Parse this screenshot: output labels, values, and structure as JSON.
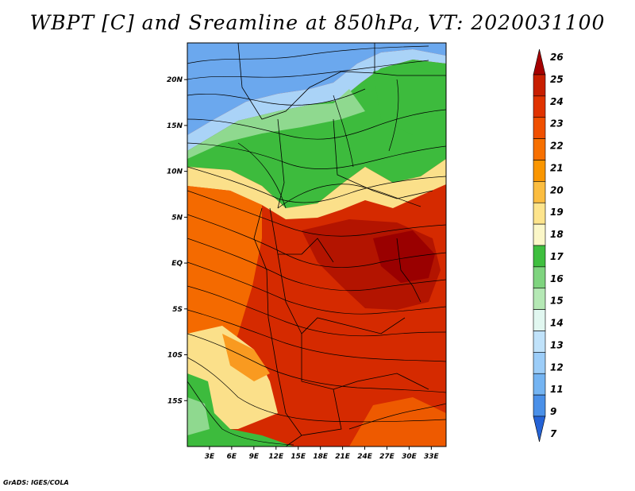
{
  "title": "WBPT [C] and Sreamline at 850hPa, VT: 2020031100",
  "credit": "GrADS: IGES/COLA",
  "map": {
    "lon_range": [
      0,
      35
    ],
    "lat_range": [
      -20,
      24
    ],
    "lon_ticks": [
      "3E",
      "6E",
      "9E",
      "12E",
      "15E",
      "18E",
      "21E",
      "24E",
      "27E",
      "30E",
      "33E"
    ],
    "lat_ticks": [
      "20N",
      "15N",
      "10N",
      "5N",
      "EQ",
      "5S",
      "10S",
      "15S"
    ]
  },
  "colorbar": {
    "levels": [
      "26",
      "25",
      "24",
      "23",
      "22",
      "21",
      "20",
      "19",
      "18",
      "17",
      "16",
      "15",
      "14",
      "13",
      "12",
      "11",
      "9",
      "7"
    ],
    "colors": [
      "#a50000",
      "#c81e00",
      "#e03300",
      "#f05000",
      "#f77000",
      "#fa9600",
      "#fbbd40",
      "#fde48c",
      "#fbf7c8",
      "#3fbf3f",
      "#7fd47f",
      "#b5e8b5",
      "#e1f7f0",
      "#c0e2fa",
      "#9ccdf8",
      "#74b4f2",
      "#4a90e8",
      "#2563d6"
    ]
  }
}
